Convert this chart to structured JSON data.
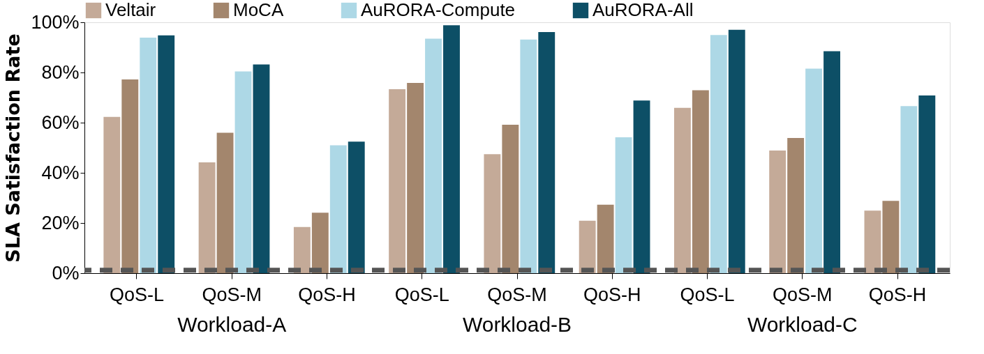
{
  "chart_data": {
    "type": "bar",
    "ylabel": "SLA Satisfaction Rate",
    "categories": [
      "QoS-L",
      "QoS-M",
      "QoS-H",
      "QoS-L",
      "QoS-M",
      "QoS-H",
      "QoS-L",
      "QoS-M",
      "QoS-H"
    ],
    "series": [
      {
        "name": "Veltair",
        "color": "#c4aa98",
        "values": [
          62.3,
          44.2,
          18.4,
          73.3,
          47.4,
          20.9,
          65.9,
          48.9,
          24.9
        ]
      },
      {
        "name": "MoCA",
        "color": "#a3866d",
        "values": [
          77.2,
          56.0,
          24.1,
          75.8,
          59.2,
          27.3,
          72.9,
          53.9,
          28.8
        ]
      },
      {
        "name": "AuRORA-Compute",
        "color": "#add8e6",
        "values": [
          93.9,
          80.4,
          51.0,
          93.5,
          93.1,
          54.2,
          94.9,
          81.5,
          66.6
        ]
      },
      {
        "name": "AuRORA-All",
        "color": "#0d4f66",
        "values": [
          94.8,
          83.2,
          52.4,
          98.8,
          96.1,
          68.8,
          97.0,
          88.5,
          70.8
        ]
      }
    ],
    "annotations": [
      "Workload-A",
      "Workload-B",
      "Workload-C"
    ],
    "ylim": [
      0,
      100
    ],
    "yticks": [
      {
        "value": 0,
        "label": "0%"
      },
      {
        "value": 20,
        "label": "20%"
      },
      {
        "value": 40,
        "label": "40%"
      },
      {
        "value": 60,
        "label": "60%"
      },
      {
        "value": 80,
        "label": "80%"
      },
      {
        "value": 100,
        "label": "100%"
      }
    ],
    "ref_lines": [
      {
        "axis": "y",
        "value": 1.2,
        "label": null,
        "color": "#555555",
        "line_style": "dashed"
      }
    ],
    "grid": false,
    "legend": "top"
  }
}
